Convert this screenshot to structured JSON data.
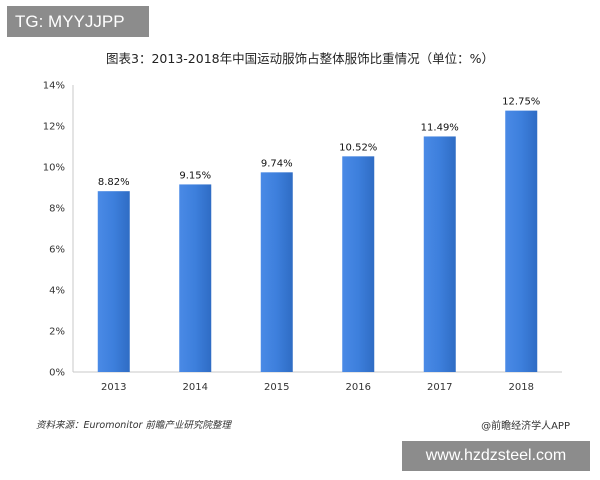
{
  "watermark_top": "TG: MYYJJPP",
  "watermark_bottom": "www.hzdzsteel.com",
  "source": "资料来源：Euromonitor  前瞻产业研究院整理",
  "brand": "@前瞻经济学人APP",
  "chart_data": {
    "type": "bar",
    "title": "图表3：2013-2018年中国运动服饰占整体服饰比重情况（单位：%）",
    "categories": [
      "2013",
      "2014",
      "2015",
      "2016",
      "2017",
      "2018"
    ],
    "values": [
      8.82,
      9.15,
      9.74,
      10.52,
      11.49,
      12.75
    ],
    "data_labels": [
      "8.82%",
      "9.15%",
      "9.74%",
      "10.52%",
      "11.49%",
      "12.75%"
    ],
    "ylim": [
      0,
      14
    ],
    "yticks": [
      "0%",
      "2%",
      "4%",
      "6%",
      "8%",
      "10%",
      "12%",
      "14%"
    ],
    "bar_color": "#3b7dd8",
    "grid": false
  }
}
